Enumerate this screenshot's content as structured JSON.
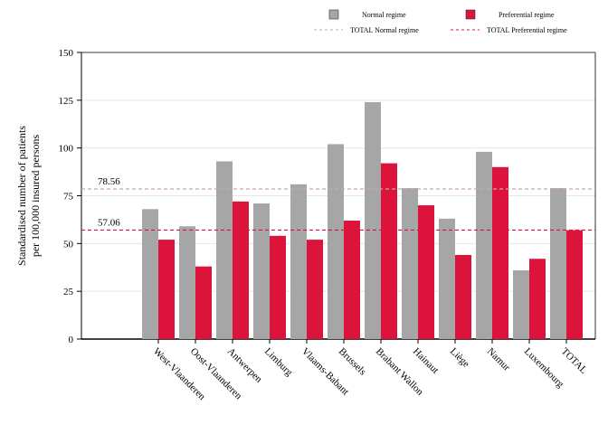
{
  "chart_data": {
    "type": "bar",
    "categories": [
      "West-Vlaanderen",
      "Oost-Vlaanderen",
      "Antwerpen",
      "Limburg",
      "Vlaams-Babant",
      "Brussels",
      "Brabant Wallon",
      "Hainaut",
      "Liège",
      "Namur",
      "Luxembourg",
      "TOTAL"
    ],
    "series": [
      {
        "name": "Normal regime",
        "color": "#a6a6a6",
        "values": [
          68,
          59,
          93,
          71,
          81,
          102,
          124,
          79,
          63,
          98,
          36,
          79
        ]
      },
      {
        "name": "Preferential regime",
        "color": "#dc143c",
        "values": [
          52,
          38,
          72,
          54,
          52,
          62,
          92,
          70,
          44,
          90,
          42,
          57
        ]
      }
    ],
    "reference_lines": [
      {
        "name": "TOTAL Normal regime",
        "value": 78.56,
        "label": "78.56",
        "color": "#c8a6ab",
        "style": "dashed"
      },
      {
        "name": "TOTAL Preferential regime",
        "value": 57.06,
        "label": "57.06",
        "color": "#dc143c",
        "style": "dashed"
      }
    ],
    "title": "",
    "xlabel": "",
    "ylabel": "Standardised number of patients\nper 100,000 insured persons",
    "ylim": [
      0,
      150
    ],
    "yticks": [
      0,
      25,
      50,
      75,
      100,
      125,
      150
    ],
    "grid": true,
    "legend_position": "top-right"
  }
}
